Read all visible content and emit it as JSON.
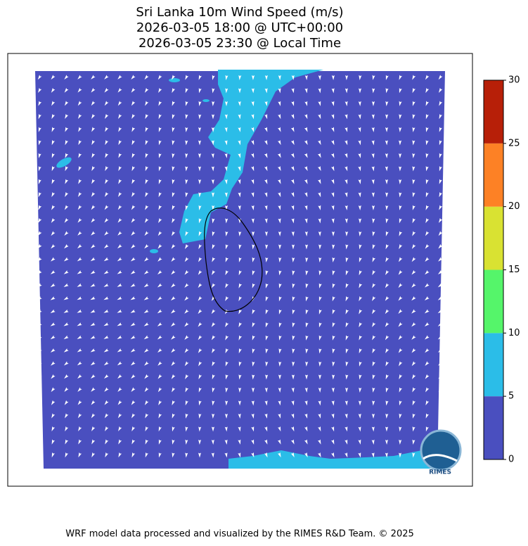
{
  "header": {
    "title_lines": [
      "Sri Lanka 10m Wind Speed (m/s)",
      "2026-03-05 18:00 @ UTC+00:00",
      "2026-03-05 23:30 @ Local Time"
    ]
  },
  "colorbar": {
    "levels": [
      0,
      5,
      10,
      15,
      20,
      25,
      30
    ],
    "colors": [
      "#4a4fbf",
      "#2bbde8",
      "#55f56a",
      "#d9e232",
      "#fd8125",
      "#b71f08"
    ]
  },
  "logo_text": "RIMES",
  "footer": "WRF model data processed and visualized by the RIMES R&D Team. © 2025"
}
